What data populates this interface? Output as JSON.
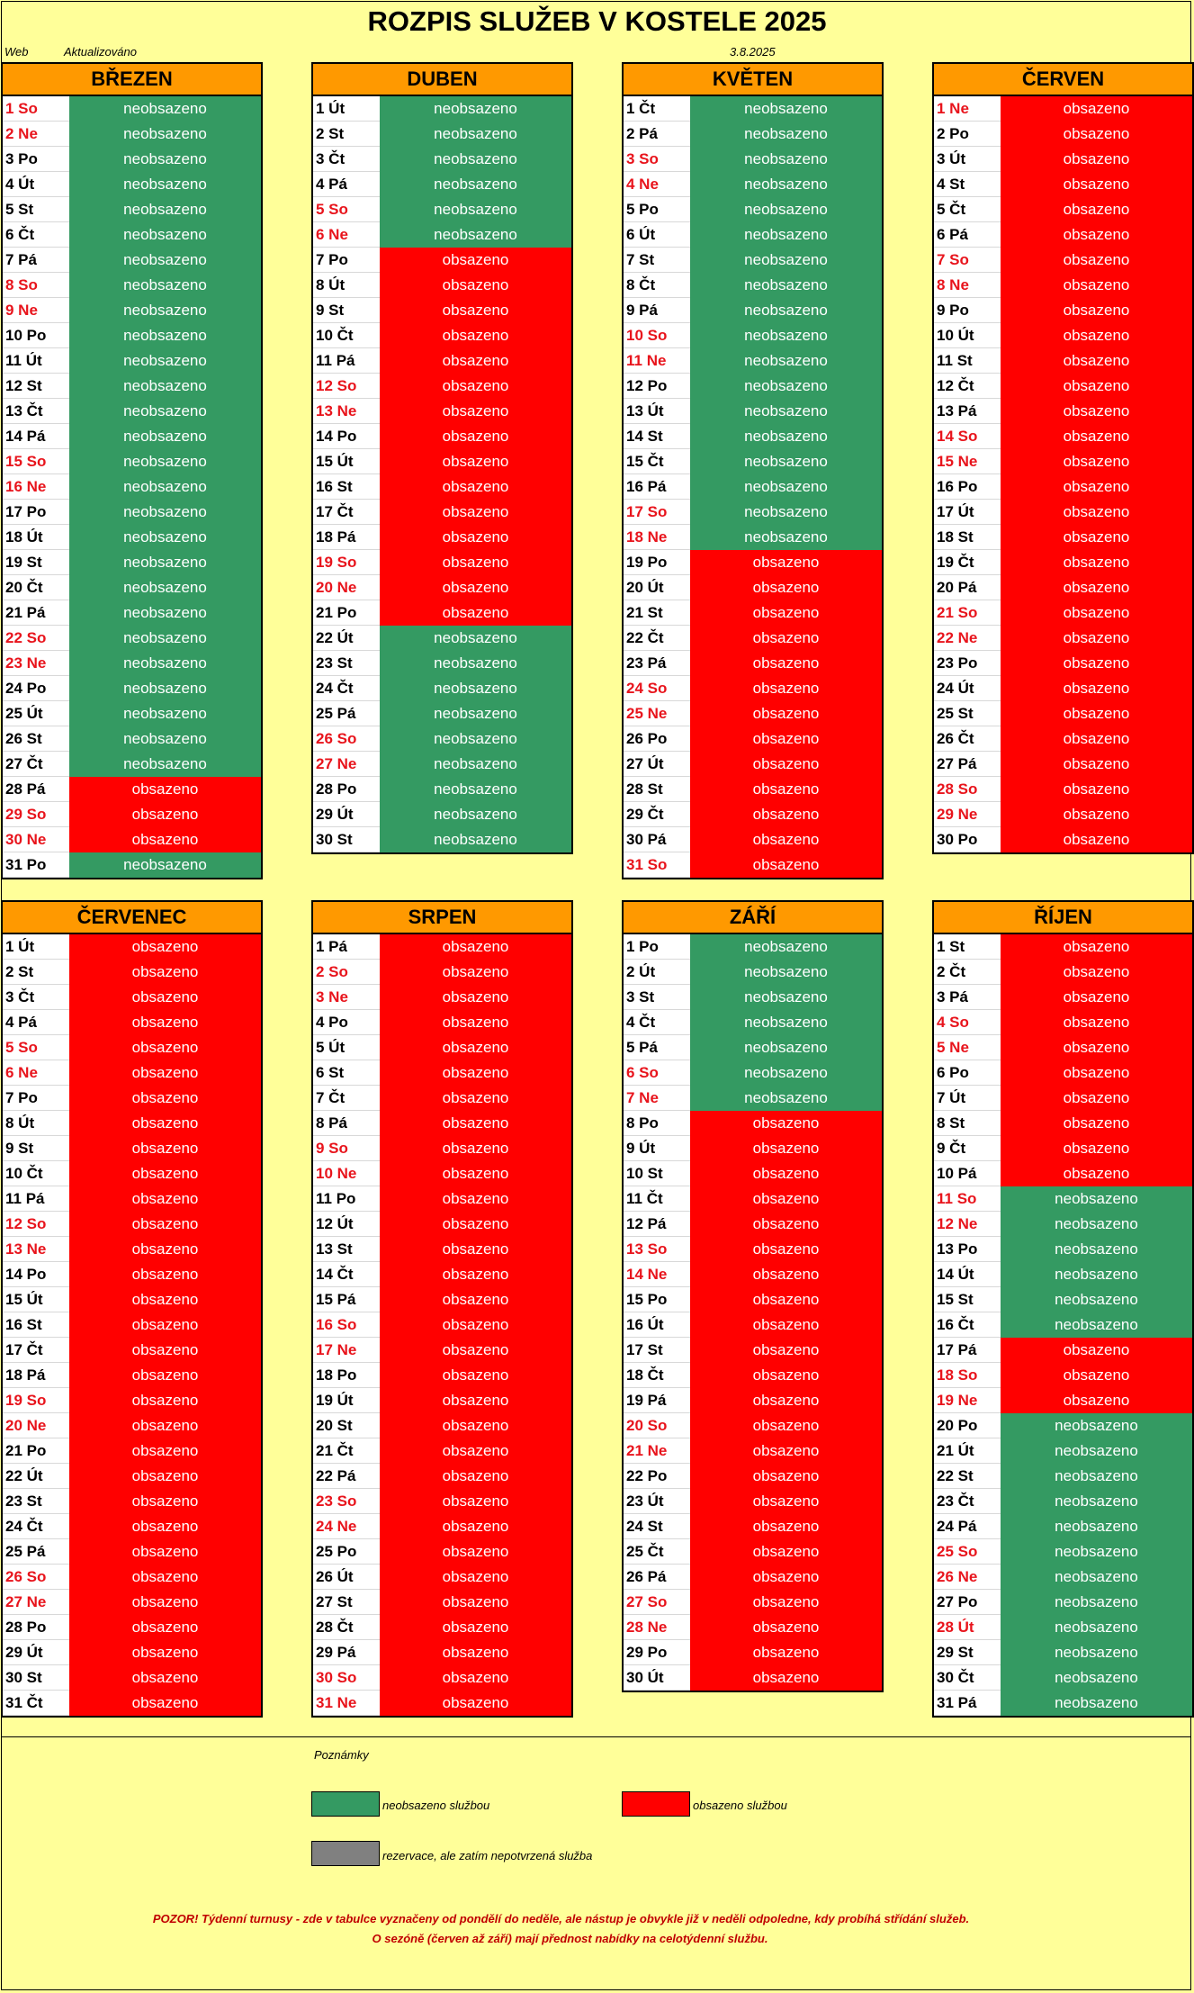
{
  "title": "ROZPIS SLUŽEB V KOSTELE 2025",
  "header": {
    "web": "Web",
    "updated_label": "Aktualizováno",
    "updated_date": "3.8.2025"
  },
  "status_labels": {
    "free": "neobsazeno",
    "busy": "obsazeno"
  },
  "colors": {
    "free": "#349a62",
    "busy": "#ff0000",
    "reserved": "#808080",
    "month_header": "#ff9900",
    "background": "#ffff99",
    "weekend_text": "#e8141c"
  },
  "weekday_cycle": [
    "Po",
    "Út",
    "St",
    "Čt",
    "Pá",
    "So",
    "Ne"
  ],
  "months": [
    {
      "name": "BŘEZEN",
      "days": 31,
      "first_weekday": 5,
      "busy_days": [
        28,
        29,
        30
      ]
    },
    {
      "name": "DUBEN",
      "days": 30,
      "first_weekday": 1,
      "busy_days": [
        7,
        8,
        9,
        10,
        11,
        12,
        13,
        14,
        15,
        16,
        17,
        18,
        19,
        20,
        21
      ]
    },
    {
      "name": "KVĚTEN",
      "days": 31,
      "first_weekday": 3,
      "busy_days": [
        19,
        20,
        21,
        22,
        23,
        24,
        25,
        26,
        27,
        28,
        29,
        30,
        31
      ]
    },
    {
      "name": "ČERVEN",
      "days": 30,
      "first_weekday": 6,
      "busy_days": [
        1,
        2,
        3,
        4,
        5,
        6,
        7,
        8,
        9,
        10,
        11,
        12,
        13,
        14,
        15,
        16,
        17,
        18,
        19,
        20,
        21,
        22,
        23,
        24,
        25,
        26,
        27,
        28,
        29,
        30
      ]
    },
    {
      "name": "ČERVENEC",
      "days": 31,
      "first_weekday": 1,
      "busy_days": [
        1,
        2,
        3,
        4,
        5,
        6,
        7,
        8,
        9,
        10,
        11,
        12,
        13,
        14,
        15,
        16,
        17,
        18,
        19,
        20,
        21,
        22,
        23,
        24,
        25,
        26,
        27,
        28,
        29,
        30,
        31
      ]
    },
    {
      "name": "SRPEN",
      "days": 31,
      "first_weekday": 4,
      "busy_days": [
        1,
        2,
        3,
        4,
        5,
        6,
        7,
        8,
        9,
        10,
        11,
        12,
        13,
        14,
        15,
        16,
        17,
        18,
        19,
        20,
        21,
        22,
        23,
        24,
        25,
        26,
        27,
        28,
        29,
        30,
        31
      ]
    },
    {
      "name": "ZÁŘÍ",
      "days": 30,
      "first_weekday": 0,
      "busy_days": [
        8,
        9,
        10,
        11,
        12,
        13,
        14,
        15,
        16,
        17,
        18,
        19,
        20,
        21,
        22,
        23,
        24,
        25,
        26,
        27,
        28,
        29,
        30
      ]
    },
    {
      "name": "ŘÍJEN",
      "days": 31,
      "first_weekday": 2,
      "busy_days": [
        1,
        2,
        3,
        4,
        5,
        6,
        7,
        8,
        9,
        10,
        17,
        18,
        19
      ]
    }
  ],
  "weekend_extra_days": {
    "ŘÍJEN": [
      28
    ]
  },
  "legend": {
    "title": "Poznámky",
    "free": "neobsazeno službou",
    "busy": "obsazeno službou",
    "reserved": "rezervace, ale zatím nepotvrzená služba"
  },
  "warning_line1": "POZOR! Týdenní turnusy - zde v tabulce vyznačeny od pondělí do neděle, ale nástup je obvykle již v neděli odpoledne, kdy probíhá střídání služeb.",
  "warning_line2": "O sezóně (červen až září) mají přednost nabídky na celotýdenní službu."
}
